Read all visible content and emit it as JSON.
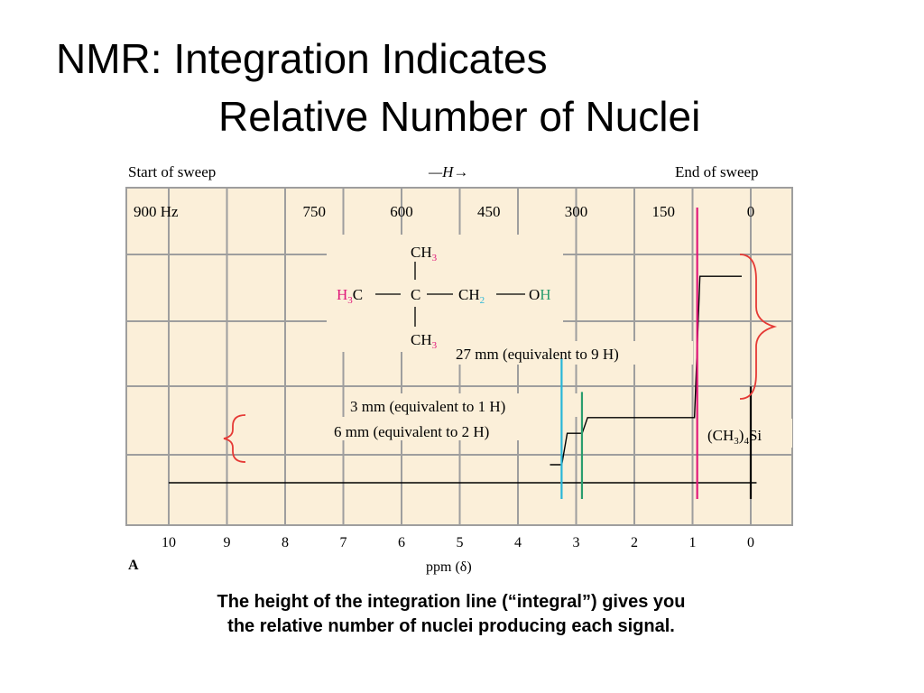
{
  "slide": {
    "title_line1": "NMR:   Integration Indicates",
    "title_line2": "Relative Number of Nuclei",
    "caption_line1": "The height of the integration line (“integral”) gives you",
    "caption_line2": "the relative number of nuclei producing each signal."
  },
  "chart_data": {
    "type": "line",
    "top_labels": {
      "left": "Start of sweep",
      "center": "—H→",
      "right": "End of sweep"
    },
    "hz_ticks": [
      "900 Hz",
      "750",
      "600",
      "450",
      "300",
      "150",
      "0"
    ],
    "ppm_ticks": [
      "10",
      "9",
      "8",
      "7",
      "6",
      "5",
      "4",
      "3",
      "2",
      "1",
      "0"
    ],
    "xlabel": "ppm (δ)",
    "panel_label": "A",
    "xlim": [
      10,
      0
    ],
    "peaks": [
      {
        "ppm": 3.25,
        "relative_height": 0.45,
        "color": "#29b6d8"
      },
      {
        "ppm": 2.9,
        "relative_height": 0.33,
        "color": "#2a9d6e"
      },
      {
        "ppm": 0.92,
        "relative_height": 1.0,
        "color": "#e0187a"
      },
      {
        "ppm": 0.0,
        "relative_height": 0.35,
        "color": "#000000"
      }
    ],
    "integral_steps_mm": [
      {
        "ppm": 3.2,
        "height_mm": 6
      },
      {
        "ppm": 2.85,
        "height_mm": 3
      },
      {
        "ppm": 0.92,
        "height_mm": 27
      }
    ],
    "annotations": {
      "a27": "27 mm  (equivalent to 9 H)",
      "a3": "3 mm  (equivalent to 1 H)",
      "a6": "6 mm  (equivalent to 2 H)",
      "tms_main": "(CH",
      "tms_sub": "3",
      "tms_tail": ")",
      "tms_sub2": "4",
      "tms_end": "Si"
    },
    "molecule": {
      "ch3": "CH",
      "three": "3",
      "h": "H",
      "c": "C",
      "ch": "CH",
      "two": "2",
      "o": "O",
      "bond": "——"
    },
    "colors": {
      "background": "#fbefd9",
      "grid": "#9e9e9e",
      "bracket": "#e53935",
      "pink": "#e0187a",
      "cyan": "#29b6d8",
      "green": "#2a9d6e"
    }
  }
}
